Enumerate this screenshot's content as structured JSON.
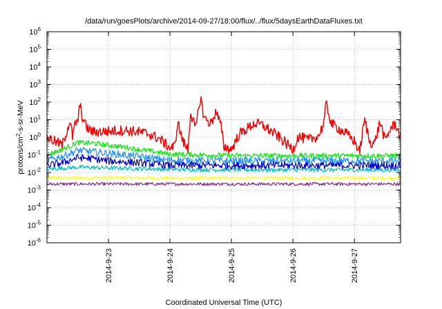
{
  "chart_data": {
    "type": "line",
    "title": "/data/run/goesPlots/archive/2014-09-27/18:00/flux/../flux/5daysEarthDataFluxes.txt",
    "xlabel": "Coordinated Universal Time (UTC)",
    "ylabel": "protons/cm²-s-sr-MeV",
    "ylabel_parts": [
      "protons/cm",
      "2",
      "-s-sr-MeV"
    ],
    "x_scale": "time",
    "xlim": [
      "2014-09-22T00:00",
      "2014-09-27T18:00"
    ],
    "x_ticks": [
      "2014-9-23",
      "2014-9-24",
      "2014-9-25",
      "2014-9-26",
      "2014-9-27"
    ],
    "y_scale": "log",
    "ylim": [
      1e-06,
      1000000.0
    ],
    "y_ticks": [
      {
        "base": "10",
        "exp": "-6"
      },
      {
        "base": "10",
        "exp": "-5"
      },
      {
        "base": "10",
        "exp": "-4"
      },
      {
        "base": "10",
        "exp": "-3"
      },
      {
        "base": "10",
        "exp": "-2"
      },
      {
        "base": "10",
        "exp": "-1"
      },
      {
        "base": "10",
        "exp": "0"
      },
      {
        "base": "10",
        "exp": "1"
      },
      {
        "base": "10",
        "exp": "2"
      },
      {
        "base": "10",
        "exp": "3"
      },
      {
        "base": "10",
        "exp": "4"
      },
      {
        "base": "10",
        "exp": "5"
      },
      {
        "base": "10",
        "exp": "6"
      }
    ],
    "grid": true,
    "legend": "none",
    "series": [
      {
        "color": "#ff0000",
        "noise": 0.1,
        "x": [
          "2014-09-22T00:00",
          "2014-09-22T06:00",
          "2014-09-22T09:00",
          "2014-09-22T10:00",
          "2014-09-22T11:00",
          "2014-09-22T12:00",
          "2014-09-22T13:00",
          "2014-09-22T13:30",
          "2014-09-22T14:00",
          "2014-09-22T15:00",
          "2014-09-22T16:00",
          "2014-09-22T18:00",
          "2014-09-23T00:00",
          "2014-09-23T06:00",
          "2014-09-23T12:00",
          "2014-09-23T16:00",
          "2014-09-23T20:00",
          "2014-09-24T00:00",
          "2014-09-24T02:00",
          "2014-09-24T03:00",
          "2014-09-24T05:00",
          "2014-09-24T07:00",
          "2014-09-24T08:00",
          "2014-09-24T10:00",
          "2014-09-24T12:00",
          "2014-09-24T13:00",
          "2014-09-24T14:00",
          "2014-09-24T16:00",
          "2014-09-24T18:00",
          "2014-09-24T20:00",
          "2014-09-24T21:00",
          "2014-09-25T00:00",
          "2014-09-25T03:00",
          "2014-09-25T06:00",
          "2014-09-25T09:00",
          "2014-09-25T12:00",
          "2014-09-25T18:00",
          "2014-09-26T00:00",
          "2014-09-26T02:00",
          "2014-09-26T06:00",
          "2014-09-26T10:00",
          "2014-09-26T12:00",
          "2014-09-26T13:00",
          "2014-09-26T15:00",
          "2014-09-26T18:00",
          "2014-09-26T21:00",
          "2014-09-27T00:00",
          "2014-09-27T02:00",
          "2014-09-27T04:00",
          "2014-09-27T06:00",
          "2014-09-27T08:00",
          "2014-09-27T10:00",
          "2014-09-27T12:00",
          "2014-09-27T14:00",
          "2014-09-27T16:00",
          "2014-09-27T18:00"
        ],
        "y": [
          1.0,
          0.35,
          9.0,
          1.0,
          6.0,
          8.0,
          80,
          20,
          12,
          5,
          3,
          2,
          2.2,
          2.5,
          2,
          1.5,
          0.8,
          0.25,
          0.3,
          8,
          0.6,
          0.2,
          25,
          3,
          200,
          20,
          10,
          6,
          30,
          4,
          0.3,
          0.2,
          1.5,
          3,
          6,
          5,
          1.2,
          0.2,
          1.1,
          0.7,
          1.2,
          6,
          80,
          6,
          3,
          1.5,
          0.6,
          0.15,
          10,
          0.5,
          0.5,
          8,
          0.6,
          3,
          6,
          1.0
        ]
      },
      {
        "color": "#00ee00",
        "noise": 0.05,
        "x": [
          "2014-09-22T00:00",
          "2014-09-22T06:00",
          "2014-09-22T12:00",
          "2014-09-22T18:00",
          "2014-09-23T00:00",
          "2014-09-23T06:00",
          "2014-09-23T12:00",
          "2014-09-23T18:00",
          "2014-09-24T00:00",
          "2014-09-25T00:00",
          "2014-09-26T00:00",
          "2014-09-27T00:00",
          "2014-09-27T18:00"
        ],
        "y": [
          0.1,
          0.2,
          0.5,
          0.45,
          0.35,
          0.28,
          0.2,
          0.15,
          0.11,
          0.09,
          0.09,
          0.09,
          0.09
        ]
      },
      {
        "color": "#1e90ff",
        "noise": 0.07,
        "x": [
          "2014-09-22T00:00",
          "2014-09-22T06:00",
          "2014-09-22T12:00",
          "2014-09-22T18:00",
          "2014-09-23T00:00",
          "2014-09-23T06:00",
          "2014-09-23T12:00",
          "2014-09-23T18:00",
          "2014-09-24T00:00",
          "2014-09-25T00:00",
          "2014-09-26T00:00",
          "2014-09-27T00:00",
          "2014-09-27T18:00"
        ],
        "y": [
          0.05,
          0.08,
          0.18,
          0.15,
          0.12,
          0.1,
          0.08,
          0.06,
          0.05,
          0.045,
          0.045,
          0.045,
          0.045
        ]
      },
      {
        "color": "#0000cc",
        "noise": 0.07,
        "x": [
          "2014-09-22T00:00",
          "2014-09-22T06:00",
          "2014-09-22T12:00",
          "2014-09-22T18:00",
          "2014-09-23T00:00",
          "2014-09-23T06:00",
          "2014-09-23T12:00",
          "2014-09-23T18:00",
          "2014-09-24T00:00",
          "2014-09-25T00:00",
          "2014-09-26T00:00",
          "2014-09-27T00:00",
          "2014-09-27T18:00"
        ],
        "y": [
          0.025,
          0.035,
          0.07,
          0.06,
          0.045,
          0.04,
          0.035,
          0.03,
          0.025,
          0.025,
          0.025,
          0.025,
          0.025
        ]
      },
      {
        "color": "#00c0c0",
        "noise": 0.04,
        "x": [
          "2014-09-22T00:00",
          "2014-09-22T12:00",
          "2014-09-23T00:00",
          "2014-09-24T00:00",
          "2014-09-25T00:00",
          "2014-09-26T00:00",
          "2014-09-27T00:00",
          "2014-09-27T18:00"
        ],
        "y": [
          0.015,
          0.02,
          0.018,
          0.015,
          0.014,
          0.014,
          0.014,
          0.014
        ]
      },
      {
        "color": "#ffff00",
        "noise": 0.03,
        "x": [
          "2014-09-22T00:00",
          "2014-09-23T00:00",
          "2014-09-24T00:00",
          "2014-09-25T00:00",
          "2014-09-26T00:00",
          "2014-09-27T00:00",
          "2014-09-27T18:00"
        ],
        "y": [
          0.005,
          0.005,
          0.0048,
          0.0048,
          0.0048,
          0.0048,
          0.0048
        ]
      },
      {
        "color": "#8b2a8b",
        "noise": 0.03,
        "x": [
          "2014-09-22T00:00",
          "2014-09-23T00:00",
          "2014-09-24T00:00",
          "2014-09-25T00:00",
          "2014-09-26T00:00",
          "2014-09-27T00:00",
          "2014-09-27T18:00"
        ],
        "y": [
          0.0022,
          0.0022,
          0.0022,
          0.0022,
          0.0022,
          0.0022,
          0.0022
        ]
      }
    ]
  }
}
